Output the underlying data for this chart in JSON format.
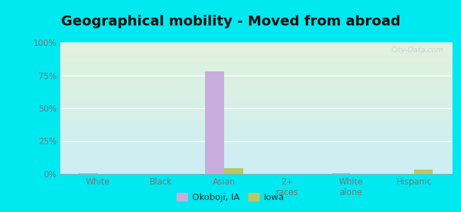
{
  "title": "Geographical mobility - Moved from abroad",
  "categories": [
    "White",
    "Black",
    "Asian",
    "2+\nraces",
    "White\nalone",
    "Hispanic"
  ],
  "okoboji_values": [
    0.8,
    0.0,
    78.0,
    0.0,
    0.8,
    0.0
  ],
  "iowa_values": [
    0.0,
    0.2,
    4.5,
    0.2,
    0.0,
    3.0
  ],
  "okoboji_color": "#c9aedd",
  "iowa_color": "#b8c866",
  "ylim": [
    0,
    100
  ],
  "yticks": [
    0,
    25,
    50,
    75,
    100
  ],
  "ytick_labels": [
    "0%",
    "25%",
    "50%",
    "75%",
    "100%"
  ],
  "bg_outer": "#00e8f0",
  "bg_inner_top": "#e2f2dc",
  "bg_inner_bottom": "#cceef5",
  "title_fontsize": 14,
  "label_fontsize": 8.5,
  "legend_fontsize": 9,
  "bar_width": 0.3,
  "watermark": "City-Data.com",
  "tick_color": "#777777"
}
